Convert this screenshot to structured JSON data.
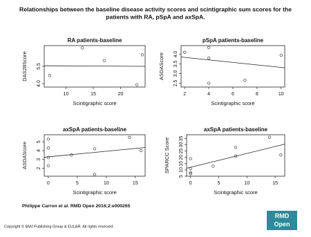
{
  "title": [
    "Relationships between the baseline disease activity scores and scintigraphic sum scores for the",
    "patients with RA, pSpA and axSpA."
  ],
  "chart_data": [
    {
      "type": "scatter",
      "title": "RA patients-baseline",
      "x_label": "Scintigraphic score",
      "y_label": "DAS28Score",
      "x": [
        7,
        13,
        17,
        23,
        24
      ],
      "y": [
        4.7,
        7.1,
        6.0,
        3.9,
        6.5
      ],
      "xlim": [
        6,
        24.5
      ],
      "ylim": [
        3.7,
        7.3
      ],
      "xticks": [
        10,
        15,
        20
      ],
      "yticks": [
        {
          "value": 4,
          "label": "4.0"
        },
        {
          "value": 5.5,
          "label": "5.5"
        }
      ],
      "fit": {
        "x": [
          6,
          24.5
        ],
        "y": [
          5.55,
          5.5
        ]
      }
    },
    {
      "type": "scatter",
      "title": "pSpA patients-baseline",
      "x_label": "Scintigraphic score",
      "y_label": "ASDAScore",
      "x": [
        2,
        4,
        4,
        4,
        7,
        10
      ],
      "y": [
        4.1,
        4.35,
        3.8,
        2.5,
        2.65,
        3.95
      ],
      "xlim": [
        1.7,
        10.3
      ],
      "ylim": [
        2.3,
        4.45
      ],
      "xticks": [
        2,
        4,
        6,
        8,
        10
      ],
      "yticks": [
        2.5,
        {
          "value": 3,
          "label": "3.0"
        },
        3.5,
        {
          "value": 4,
          "label": "4.0"
        }
      ],
      "fit": {
        "x": [
          1.7,
          10.3
        ],
        "y": [
          3.86,
          3.3
        ]
      }
    },
    {
      "type": "scatter",
      "title": "axSpA patients-baseline",
      "x_label": "Scintigraphic score",
      "y_label": "ASDAScore",
      "x": [
        0,
        0,
        0,
        0,
        4,
        8,
        8,
        14,
        16
      ],
      "y": [
        5.3,
        4.3,
        3.2,
        2.3,
        3.5,
        4.2,
        1.3,
        5.5,
        4.0
      ],
      "xlim": [
        -0.7,
        16.7
      ],
      "ylim": [
        1.1,
        5.8
      ],
      "xticks": [
        0,
        5,
        10,
        15
      ],
      "yticks": [
        2,
        3,
        4,
        5
      ],
      "fit": {
        "x": [
          -0.7,
          16.7
        ],
        "y": [
          3.25,
          4.35
        ]
      }
    },
    {
      "type": "scatter",
      "title": "axSpA patients-baseline",
      "x_label": "Scintigraphic score",
      "y_label": "SPARCC Score",
      "x": [
        0,
        0,
        0,
        0,
        4,
        8,
        8,
        14,
        16
      ],
      "y": [
        19,
        11,
        8,
        7,
        13,
        28,
        21,
        36,
        22
      ],
      "xlim": [
        -0.7,
        16.7
      ],
      "ylim": [
        5,
        38
      ],
      "xticks": [
        0,
        5,
        10,
        15
      ],
      "yticks": [
        5,
        10,
        15,
        20,
        25,
        30,
        35
      ],
      "fit": {
        "x": [
          -0.7,
          16.7
        ],
        "y": [
          11.3,
          30.5
        ]
      }
    }
  ],
  "citation": "Philippe Carron et al. RMD Open 2016;2:e000265",
  "copyright": "Copyright © BMJ Publishing Group & EULAR. All rights reserved.",
  "logo": [
    "RMD",
    "Open"
  ]
}
